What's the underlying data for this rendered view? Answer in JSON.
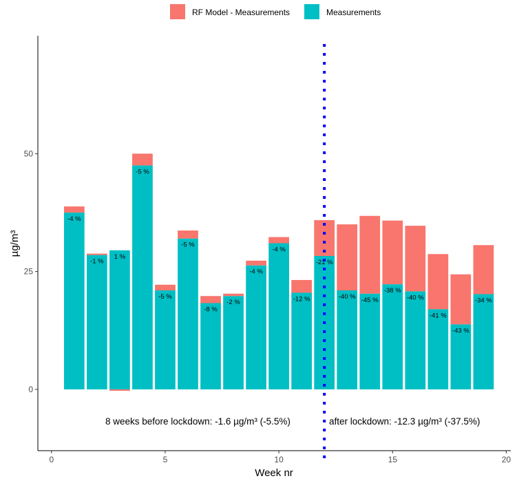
{
  "chart_data": {
    "type": "bar",
    "stacked": true,
    "xlabel": "Week nr",
    "ylabel": "µg/m³",
    "xlim": [
      -0.6,
      20.2
    ],
    "ylim": [
      -13,
      75
    ],
    "x_ticks": [
      0,
      5,
      10,
      15,
      20
    ],
    "y_ticks": [
      0,
      25,
      50
    ],
    "grid": false,
    "legend_position": "top",
    "legend": [
      {
        "name": "RF Model - Measurements",
        "color": "#F8766D"
      },
      {
        "name": "Measurements",
        "color": "#00BFC4"
      }
    ],
    "x": [
      1,
      2,
      3,
      4,
      5,
      6,
      7,
      8,
      9,
      10,
      11,
      12,
      13,
      14,
      15,
      16,
      17,
      18,
      19
    ],
    "series": [
      {
        "name": "Measurements",
        "color": "#00BFC4",
        "values": [
          37.5,
          28.5,
          29.5,
          47.5,
          21.0,
          32.0,
          18.3,
          19.8,
          26.3,
          31.0,
          20.5,
          28.3,
          21.0,
          20.3,
          22.3,
          20.8,
          17.0,
          13.8,
          20.2
        ]
      },
      {
        "name": "RF Model - Measurements",
        "color": "#F8766D",
        "values": [
          1.3,
          0.3,
          -0.3,
          2.5,
          1.2,
          1.7,
          1.5,
          0.5,
          1.0,
          1.3,
          2.7,
          7.6,
          14.0,
          16.5,
          13.5,
          13.9,
          11.7,
          10.6,
          10.4
        ]
      }
    ],
    "percent_labels": [
      "-4 %",
      "-1 %",
      "1 %",
      "-5 %",
      "-5 %",
      "-5 %",
      "-8 %",
      "-2 %",
      "-4 %",
      "-4 %",
      "-12 %",
      "-21 %",
      "-40 %",
      "-45 %",
      "-38 %",
      "-40 %",
      "-41 %",
      "-43 %",
      "-34 %"
    ],
    "lockdown_line": {
      "x": 12,
      "color": "#0000FF",
      "style": "dotted"
    },
    "annotations": [
      "8 weeks before lockdown: -1.6 µg/m³ (-5.5%)",
      "after lockdown: -12.3 µg/m³ (-37.5%)"
    ]
  }
}
